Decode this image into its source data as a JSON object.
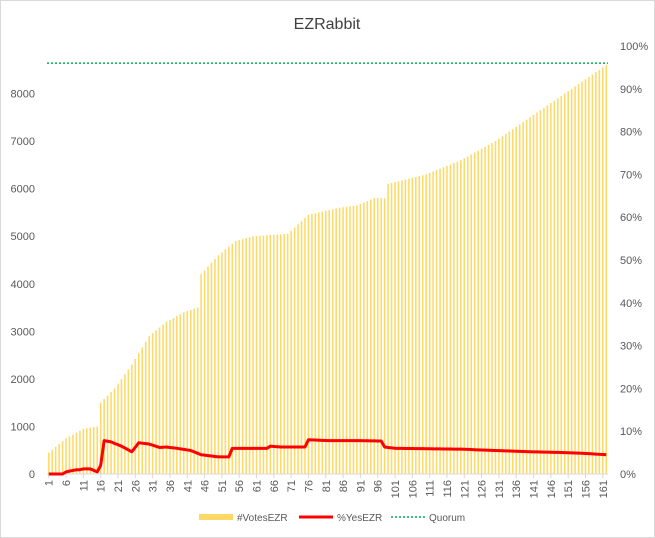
{
  "colors": {
    "bars": "#FFD966",
    "yes_line": "#FF0000",
    "quorum": "#00B050",
    "axis": "#d9d9d9",
    "text": "#595959",
    "title": "#404040"
  },
  "chart_data": {
    "type": "bar",
    "title": "EZRabbit",
    "xlabel": "",
    "ylabel": "",
    "grid": false,
    "legend_position": "bottom",
    "x_count": 162,
    "x_tick_labels": [
      "1",
      "6",
      "11",
      "16",
      "21",
      "26",
      "31",
      "36",
      "41",
      "46",
      "51",
      "56",
      "61",
      "66",
      "71",
      "76",
      "81",
      "86",
      "91",
      "96",
      "101",
      "106",
      "111",
      "116",
      "121",
      "126",
      "131",
      "136",
      "141",
      "146",
      "151",
      "156",
      "161"
    ],
    "ylim": [
      0,
      9000
    ],
    "y_tick_labels": [
      "0",
      "1000",
      "2000",
      "3000",
      "4000",
      "5000",
      "6000",
      "7000",
      "8000"
    ],
    "y2lim": [
      0,
      1.0
    ],
    "y2_tick_labels": [
      "0%",
      "10%",
      "20%",
      "30%",
      "40%",
      "50%",
      "60%",
      "70%",
      "80%",
      "90%",
      "100%"
    ],
    "series": [
      {
        "name": "#VotesEZR",
        "type": "bar",
        "axis": "left",
        "anchors": [
          [
            1,
            450
          ],
          [
            6,
            750
          ],
          [
            11,
            950
          ],
          [
            15,
            1000
          ],
          [
            16,
            1500
          ],
          [
            20,
            1800
          ],
          [
            25,
            2300
          ],
          [
            30,
            2900
          ],
          [
            35,
            3200
          ],
          [
            40,
            3400
          ],
          [
            44,
            3500
          ],
          [
            45,
            4200
          ],
          [
            50,
            4600
          ],
          [
            55,
            4900
          ],
          [
            60,
            5000
          ],
          [
            70,
            5050
          ],
          [
            76,
            5450
          ],
          [
            85,
            5600
          ],
          [
            90,
            5650
          ],
          [
            95,
            5800
          ],
          [
            98,
            5800
          ],
          [
            99,
            6100
          ],
          [
            110,
            6300
          ],
          [
            120,
            6600
          ],
          [
            130,
            7000
          ],
          [
            140,
            7500
          ],
          [
            150,
            8000
          ],
          [
            160,
            8500
          ],
          [
            162,
            8600
          ]
        ]
      },
      {
        "name": "%YesEZR",
        "type": "line",
        "axis": "right",
        "anchors": [
          [
            1,
            0.0
          ],
          [
            5,
            0.0
          ],
          [
            6,
            0.005
          ],
          [
            9,
            0.01
          ],
          [
            10,
            0.01
          ],
          [
            11,
            0.012
          ],
          [
            13,
            0.012
          ],
          [
            15,
            0.005
          ],
          [
            16,
            0.02
          ],
          [
            17,
            0.078
          ],
          [
            19,
            0.075
          ],
          [
            22,
            0.065
          ],
          [
            25,
            0.052
          ],
          [
            27,
            0.073
          ],
          [
            30,
            0.07
          ],
          [
            33,
            0.062
          ],
          [
            35,
            0.063
          ],
          [
            38,
            0.06
          ],
          [
            42,
            0.055
          ],
          [
            45,
            0.045
          ],
          [
            50,
            0.04
          ],
          [
            53,
            0.04
          ],
          [
            54,
            0.06
          ],
          [
            64,
            0.06
          ],
          [
            65,
            0.065
          ],
          [
            68,
            0.063
          ],
          [
            75,
            0.063
          ],
          [
            76,
            0.08
          ],
          [
            82,
            0.078
          ],
          [
            90,
            0.078
          ],
          [
            97,
            0.077
          ],
          [
            98,
            0.063
          ],
          [
            101,
            0.06
          ],
          [
            120,
            0.058
          ],
          [
            130,
            0.055
          ],
          [
            140,
            0.052
          ],
          [
            150,
            0.05
          ],
          [
            156,
            0.048
          ],
          [
            160,
            0.046
          ],
          [
            162,
            0.045
          ]
        ]
      },
      {
        "name": "Quorum",
        "type": "line",
        "axis": "right",
        "value": 0.96
      }
    ]
  }
}
